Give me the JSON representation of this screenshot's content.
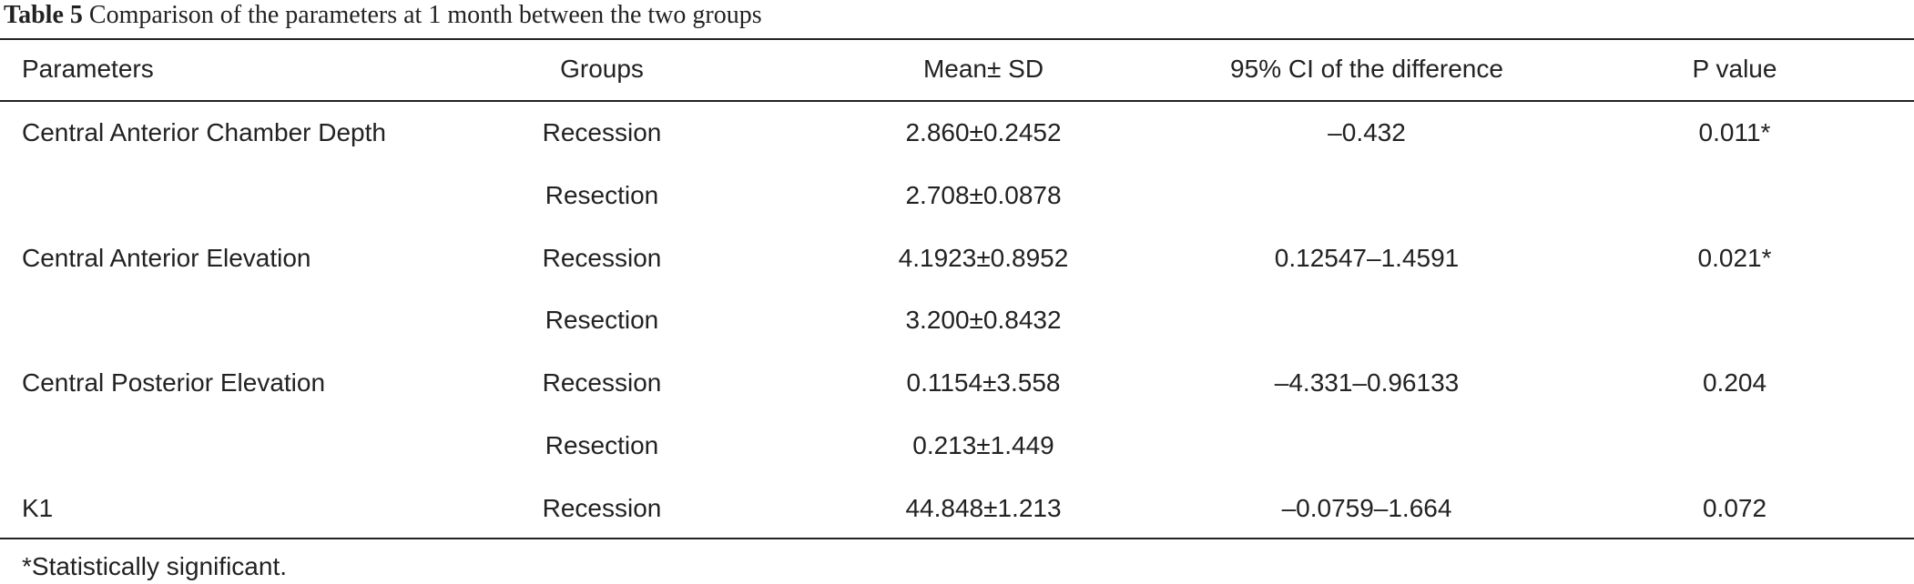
{
  "header": {
    "label": "Table 5",
    "caption": "Comparison of the parameters at 1 month between the two groups"
  },
  "table": {
    "columns": [
      "Parameters",
      "Groups",
      "Mean± SD",
      "95% CI of the difference",
      "P value"
    ],
    "sections": [
      {
        "parameter": "Central Anterior Chamber Depth",
        "ci": "–0.432",
        "p": "0.011*",
        "rows": [
          {
            "group": "Recession",
            "mean": "2.860±0.2452"
          },
          {
            "group": "Resection",
            "mean": "2.708±0.0878"
          }
        ]
      },
      {
        "parameter": "Central Anterior Elevation",
        "ci": "0.12547–1.4591",
        "p": "0.021*",
        "rows": [
          {
            "group": "Recession",
            "mean": "4.1923±0.8952"
          },
          {
            "group": "Resection",
            "mean": "3.200±0.8432"
          }
        ]
      },
      {
        "parameter": "Central Posterior Elevation",
        "ci": "–4.331–0.96133",
        "p": "0.204",
        "rows": [
          {
            "group": "Recession",
            "mean": "0.1154±3.558"
          },
          {
            "group": "Resection",
            "mean": "0.213±1.449"
          }
        ]
      },
      {
        "parameter": "K1",
        "ci": "–0.0759–1.664",
        "p": "0.072",
        "rows": [
          {
            "group": "Recession",
            "mean": "44.848±1.213"
          }
        ]
      }
    ]
  },
  "footnote": "*Statistically significant."
}
